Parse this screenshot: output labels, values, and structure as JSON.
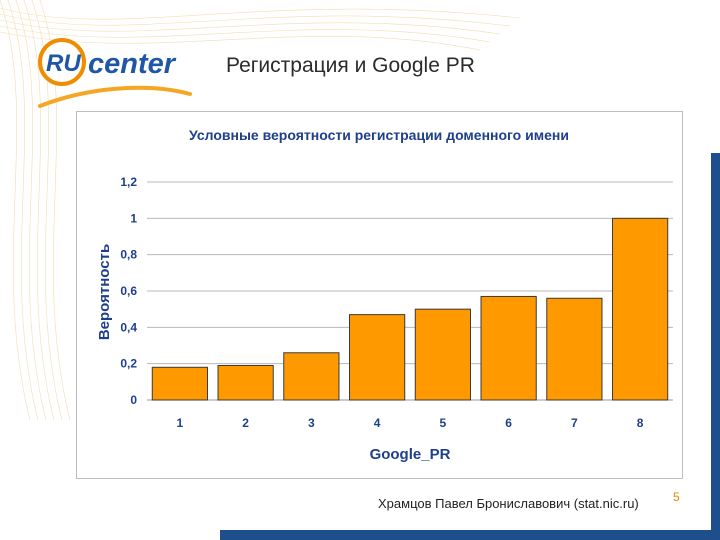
{
  "slide": {
    "title": "Регистрация и Google PR",
    "footer": "Храмцов Павел Брониславович (stat.nic.ru)",
    "page_number": "5"
  },
  "logo": {
    "text_ru": "RU",
    "text_center": "center",
    "colors": {
      "blue": "#1f57a6",
      "orange": "#f08c00"
    }
  },
  "chart_data": {
    "type": "bar",
    "title": "Условные вероятности регистрации доменного имени",
    "xlabel": "Google_PR",
    "ylabel": "Вероятность",
    "categories": [
      "1",
      "2",
      "3",
      "4",
      "5",
      "6",
      "7",
      "8"
    ],
    "values": [
      0.18,
      0.19,
      0.26,
      0.47,
      0.5,
      0.57,
      0.56,
      1.0
    ],
    "ylim": [
      0,
      1.2
    ],
    "yticks": [
      "0",
      "0,2",
      "0,4",
      "0,6",
      "0,8",
      "1",
      "1,2"
    ],
    "grid": true,
    "bar_color": "#ff9900",
    "bar_edge": "#3a3a3a",
    "text_color": "#1f3f8a"
  }
}
